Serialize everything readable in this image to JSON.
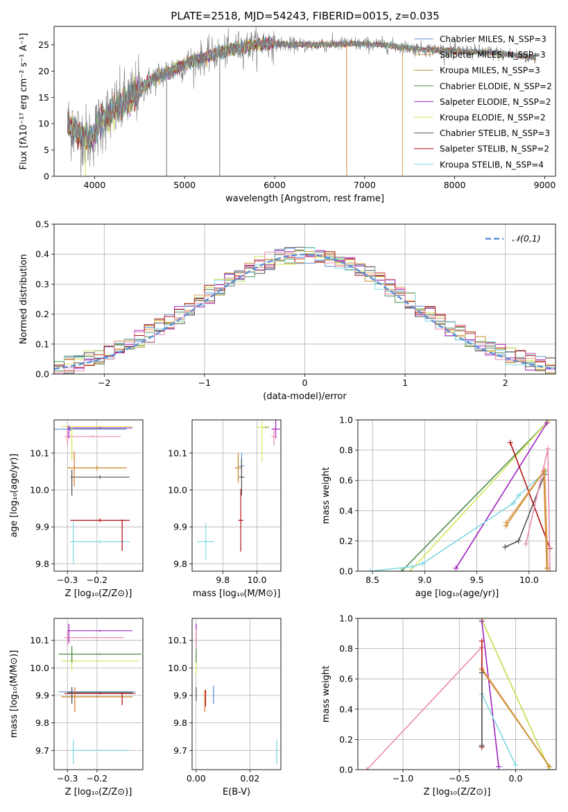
{
  "figure": {
    "title": "PLATE=2518, MJD=54243, FIBERID=0015, z=0.035"
  },
  "colors": {
    "Chabrier MILES": "#5b8ed6",
    "Salpeter MILES": "#e0a060",
    "Kroupa MILES": "#c98a2b",
    "Chabrier ELODIE": "#4d8a4d",
    "Salpeter ELODIE": "#a020c0",
    "Kroupa ELODIE": "#d6e65a",
    "Chabrier STELIB": "#555555",
    "Salpeter STELIB": "#b01010",
    "Kroupa STELIB": "#80d8e0",
    "pink": "#e98ab0",
    "orange": "#e07a30",
    "gauss": "#5b8ed6",
    "grid": "#b0b0b0"
  },
  "chart_data": [
    {
      "id": "spectrum",
      "type": "line",
      "xlabel": "wavelength [Angstrom, rest frame]",
      "ylabel": "Flux [fλ10⁻¹⁷ erg cm⁻² s⁻¹ A⁻¹]",
      "xlim": [
        3550,
        9120
      ],
      "ylim": [
        0,
        28.5
      ],
      "xticks": [
        4000,
        5000,
        6000,
        7000,
        8000,
        9000
      ],
      "yticks": [
        0,
        5,
        10,
        15,
        20,
        25
      ],
      "grid": false,
      "legend_position": "top-right",
      "legend": [
        "Chabrier MILES, N_SSP=3",
        "Salpeter MILES, N_SSP=3",
        "Kroupa MILES, N_SSP=3",
        "Chabrier ELODIE, N_SSP=2",
        "Salpeter ELODIE, N_SSP=2",
        "Kroupa ELODIE, N_SSP=2",
        "Chabrier STELIB, N_SSP=3",
        "Salpeter STELIB, N_SSP=2",
        "Kroupa STELIB, N_SSP=4"
      ],
      "continuum": [
        [
          3700,
          10
        ],
        [
          3800,
          8.5
        ],
        [
          3950,
          7
        ],
        [
          4100,
          11
        ],
        [
          4300,
          13.5
        ],
        [
          4500,
          16.5
        ],
        [
          4700,
          19
        ],
        [
          4900,
          20.5
        ],
        [
          5100,
          22
        ],
        [
          5300,
          23
        ],
        [
          5600,
          24.5
        ],
        [
          5900,
          25.3
        ],
        [
          6200,
          25
        ],
        [
          6500,
          25
        ],
        [
          6800,
          25.2
        ],
        [
          7200,
          25
        ],
        [
          7600,
          24.2
        ],
        [
          8000,
          23.8
        ],
        [
          8400,
          23.5
        ],
        [
          8800,
          22.8
        ],
        [
          8900,
          22.5
        ]
      ],
      "x_range": [
        3700,
        8900
      ]
    },
    {
      "id": "residuals",
      "type": "histogram",
      "xlabel": "(data-model)/error",
      "ylabel": "Normed distribution",
      "xlim": [
        -2.5,
        2.5
      ],
      "ylim": [
        0,
        0.5
      ],
      "xticks": [
        -2,
        -1,
        0,
        1,
        2
      ],
      "yticks": [
        0.0,
        0.1,
        0.2,
        0.3,
        0.4,
        0.5
      ],
      "grid": true,
      "legend_position": "top-right",
      "gauss_label": "𝒩(0,1)",
      "bin_width": 0.1
    },
    {
      "id": "age_vs_Z",
      "type": "scatter",
      "xlabel": "Z [log₁₀(Z/Z⊙)]",
      "ylabel": "age  [log₁₀(age/yr)]",
      "xlim": [
        -0.345,
        -0.045
      ],
      "ylim": [
        9.78,
        10.19
      ],
      "xticks": [
        -0.3,
        -0.2
      ],
      "yticks": [
        9.8,
        9.9,
        10.0,
        10.1
      ],
      "grid": true,
      "points": [
        {
          "model": "Chabrier MILES",
          "x": -0.29,
          "y": 10.165,
          "xerr": 0.19,
          "yerr": 0.005
        },
        {
          "model": "Salpeter MILES",
          "x": -0.2,
          "y": 10.06,
          "xerr": 0.1,
          "yerr": 0.006
        },
        {
          "model": "Kroupa MILES",
          "x": -0.2,
          "y": 10.06,
          "xerr": 0.1,
          "yerr": 0.006
        },
        {
          "model": "Chabrier ELODIE",
          "x": -0.2,
          "y": 10.168,
          "xerr": 0.1,
          "yerr": 0.003
        },
        {
          "model": "Salpeter ELODIE",
          "x": -0.19,
          "y": 10.168,
          "xerr": 0.11,
          "yerr": 0.003
        },
        {
          "model": "Kroupa ELODIE",
          "x": -0.2,
          "y": 10.172,
          "xerr": 0.12,
          "yerr": 0.003
        },
        {
          "model": "Chabrier STELIB",
          "x": -0.19,
          "y": 10.035,
          "xerr": 0.1,
          "yerr": 0.005
        },
        {
          "model": "Salpeter STELIB",
          "x": -0.19,
          "y": 9.918,
          "xerr": 0.1,
          "yerr": 0.005
        },
        {
          "model": "Kroupa STELIB",
          "x": -0.19,
          "y": 9.86,
          "xerr": 0.1,
          "yerr": 0.005
        },
        {
          "model": "pink",
          "x": -0.215,
          "y": 10.145,
          "xerr": 0.095,
          "yerr": 0.003
        }
      ],
      "verticals": [
        {
          "model": "Chabrier MILES",
          "x": -0.29,
          "y1": 10.16,
          "y2": 10.17
        },
        {
          "model": "Kroupa ELODIE",
          "x": -0.285,
          "y1": 10.08,
          "y2": 10.17
        },
        {
          "model": "pink",
          "x": -0.3,
          "y1": 10.12,
          "y2": 10.165
        },
        {
          "model": "Salpeter ELODIE",
          "x": -0.295,
          "y1": 10.14,
          "y2": 10.175
        },
        {
          "model": "orange",
          "x": -0.277,
          "y1": 10.01,
          "y2": 10.105
        },
        {
          "model": "Chabrier STELIB",
          "x": -0.285,
          "y1": 9.985,
          "y2": 10.055
        },
        {
          "model": "Salpeter STELIB",
          "x": -0.115,
          "y1": 9.835,
          "y2": 9.92
        },
        {
          "model": "Kroupa STELIB",
          "x": -0.28,
          "y1": 9.8,
          "y2": 9.915
        }
      ]
    },
    {
      "id": "age_vs_mass",
      "type": "scatter",
      "xlabel": "mass [log₁₀(M/M⊙)]",
      "ylabel": "",
      "xlim": [
        9.62,
        10.14
      ],
      "ylim": [
        9.78,
        10.19
      ],
      "xticks": [
        9.8,
        10.0
      ],
      "yticks": [
        9.8,
        9.9,
        10.0,
        10.1
      ],
      "grid": true,
      "points": [
        {
          "model": "Chabrier MILES",
          "x": 9.91,
          "y": 10.065,
          "xerr": 0.015,
          "yerr": 0.035
        },
        {
          "model": "Salpeter MILES",
          "x": 9.89,
          "y": 10.06,
          "xerr": 0.02,
          "yerr": 0.04
        },
        {
          "model": "Kroupa MILES",
          "x": 9.89,
          "y": 10.06,
          "xerr": 0.02,
          "yerr": 0.04
        },
        {
          "model": "Chabrier ELODIE",
          "x": 10.05,
          "y": 10.17,
          "xerr": 0.02,
          "yerr": 0.003
        },
        {
          "model": "Salpeter ELODIE",
          "x": 10.11,
          "y": 10.165,
          "xerr": 0.025,
          "yerr": 0.025
        },
        {
          "model": "Kroupa ELODIE",
          "x": 10.03,
          "y": 10.17,
          "xerr": 0.03,
          "yerr": 0.095
        },
        {
          "model": "Chabrier STELIB",
          "x": 9.91,
          "y": 10.035,
          "xerr": 0.015,
          "yerr": 0.05
        },
        {
          "model": "Salpeter STELIB",
          "x": 9.905,
          "y": 9.918,
          "xerr": 0.015,
          "yerr": 0.085
        },
        {
          "model": "Kroupa STELIB",
          "x": 9.7,
          "y": 9.86,
          "xerr": 0.05,
          "yerr": 0.05
        },
        {
          "model": "pink",
          "x": 10.1,
          "y": 10.145,
          "xerr": 0.015,
          "yerr": 0.025
        }
      ]
    },
    {
      "id": "weight_vs_age",
      "type": "line",
      "xlabel": "age  [log₁₀(age/yr)]",
      "ylabel": "mass weight",
      "xlim": [
        8.36,
        10.26
      ],
      "ylim": [
        0,
        1.0
      ],
      "xticks": [
        8.5,
        9.0,
        9.5,
        10.0
      ],
      "yticks": [
        0.0,
        0.2,
        0.4,
        0.6,
        0.8,
        1.0
      ],
      "grid": true,
      "series": [
        {
          "model": "Chabrier ELODIE",
          "x": [
            8.78,
            10.18
          ],
          "y": [
            0.0,
            0.99
          ]
        },
        {
          "model": "Kroupa ELODIE",
          "x": [
            8.86,
            10.18
          ],
          "y": [
            0.0,
            0.99
          ]
        },
        {
          "model": "Salpeter ELODIE",
          "x": [
            9.3,
            10.17
          ],
          "y": [
            0.02,
            0.98
          ]
        },
        {
          "model": "Kroupa STELIB",
          "x": [
            8.48,
            8.88,
            8.98,
            9.85,
            9.9,
            10.16
          ],
          "y": [
            0.0,
            0.03,
            0.05,
            0.45,
            0.5,
            0.66
          ]
        },
        {
          "model": "Chabrier STELIB",
          "x": [
            9.77,
            9.9,
            10.15
          ],
          "y": [
            0.16,
            0.2,
            0.64
          ]
        },
        {
          "model": "Salpeter STELIB",
          "x": [
            9.82,
            10.2
          ],
          "y": [
            0.85,
            0.15
          ]
        },
        {
          "model": "Salpeter MILES",
          "x": [
            9.78,
            10.15,
            10.18
          ],
          "y": [
            0.32,
            0.67,
            0.02
          ]
        },
        {
          "model": "Kroupa MILES",
          "x": [
            9.78,
            10.14,
            10.17
          ],
          "y": [
            0.3,
            0.66,
            0.02
          ]
        },
        {
          "model": "pink",
          "x": [
            9.97,
            10.18,
            10.2
          ],
          "y": [
            0.18,
            0.81,
            0.0
          ]
        }
      ]
    },
    {
      "id": "mass_vs_Z",
      "type": "scatter",
      "xlabel": "Z [log₁₀(Z/Z⊙)]",
      "ylabel": "mass [log₁₀(M/M⊙)]",
      "xlim": [
        -0.345,
        -0.045
      ],
      "ylim": [
        9.63,
        10.18
      ],
      "xticks": [
        -0.3,
        -0.2
      ],
      "yticks": [
        9.7,
        9.8,
        9.9,
        10.0,
        10.1
      ],
      "grid": true,
      "points": [
        {
          "model": "Chabrier MILES",
          "x": -0.2,
          "y": 9.913,
          "xerr": 0.13,
          "yerr": 0.003
        },
        {
          "model": "Salpeter MILES",
          "x": -0.2,
          "y": 9.895,
          "xerr": 0.12,
          "yerr": 0.003
        },
        {
          "model": "Kroupa MILES",
          "x": -0.2,
          "y": 9.895,
          "xerr": 0.12,
          "yerr": 0.003
        },
        {
          "model": "Chabrier ELODIE",
          "x": -0.19,
          "y": 10.05,
          "xerr": 0.14,
          "yerr": 0.003
        },
        {
          "model": "Salpeter ELODIE",
          "x": -0.19,
          "y": 10.135,
          "xerr": 0.11,
          "yerr": 0.003
        },
        {
          "model": "Kroupa ELODIE",
          "x": -0.19,
          "y": 10.025,
          "xerr": 0.13,
          "yerr": 0.003
        },
        {
          "model": "Chabrier STELIB",
          "x": -0.19,
          "y": 9.91,
          "xerr": 0.11,
          "yerr": 0.003
        },
        {
          "model": "Salpeter STELIB",
          "x": -0.19,
          "y": 9.907,
          "xerr": 0.12,
          "yerr": 0.003
        },
        {
          "model": "Kroupa STELIB",
          "x": -0.19,
          "y": 9.7,
          "xerr": 0.1,
          "yerr": 0.003
        },
        {
          "model": "pink",
          "x": -0.21,
          "y": 10.11,
          "xerr": 0.1,
          "yerr": 0.003
        }
      ],
      "verticals": [
        {
          "model": "Salpeter ELODIE",
          "x": -0.295,
          "y1": 10.09,
          "y2": 10.16
        },
        {
          "model": "pink",
          "x": -0.3,
          "y1": 10.08,
          "y2": 10.13
        },
        {
          "model": "Kroupa ELODIE",
          "x": -0.285,
          "y1": 9.99,
          "y2": 10.06
        },
        {
          "model": "Chabrier ELODIE",
          "x": -0.285,
          "y1": 10.02,
          "y2": 10.08
        },
        {
          "model": "Chabrier MILES",
          "x": -0.285,
          "y1": 9.87,
          "y2": 9.93
        },
        {
          "model": "orange",
          "x": -0.275,
          "y1": 9.84,
          "y2": 9.93
        },
        {
          "model": "Chabrier STELIB",
          "x": -0.285,
          "y1": 9.87,
          "y2": 9.93
        },
        {
          "model": "Salpeter STELIB",
          "x": -0.115,
          "y1": 9.865,
          "y2": 9.91
        },
        {
          "model": "Kroupa STELIB",
          "x": -0.28,
          "y1": 9.65,
          "y2": 9.74
        }
      ]
    },
    {
      "id": "mass_vs_EBV",
      "type": "scatter",
      "xlabel": "E(B-V)",
      "ylabel": "",
      "xlim": [
        -0.0015,
        0.0315
      ],
      "ylim": [
        9.63,
        10.18
      ],
      "xticks": [
        0.0,
        0.02
      ],
      "yticks": [
        9.7,
        9.8,
        9.9,
        10.0,
        10.1
      ],
      "grid": true,
      "verticals": [
        {
          "model": "Salpeter ELODIE",
          "x": 0.0,
          "y1": 10.08,
          "y2": 10.16
        },
        {
          "model": "pink",
          "x": 0.0,
          "y1": 10.07,
          "y2": 10.14
        },
        {
          "model": "Kroupa ELODIE",
          "x": 0.0,
          "y1": 9.98,
          "y2": 10.04
        },
        {
          "model": "Chabrier ELODIE",
          "x": 0.0,
          "y1": 10.02,
          "y2": 10.07
        },
        {
          "model": "Chabrier STELIB",
          "x": 0.0,
          "y1": 9.88,
          "y2": 9.93
        },
        {
          "model": "Salpeter STELIB",
          "x": 0.0035,
          "y1": 9.86,
          "y2": 9.92
        },
        {
          "model": "orange",
          "x": 0.0032,
          "y1": 9.84,
          "y2": 9.92
        },
        {
          "model": "Chabrier MILES",
          "x": 0.0065,
          "y1": 9.87,
          "y2": 9.935
        },
        {
          "model": "Kroupa STELIB",
          "x": 0.03,
          "y1": 9.65,
          "y2": 9.74
        }
      ]
    },
    {
      "id": "weight_vs_Z",
      "type": "line",
      "xlabel": "Z [log₁₀(Z/Z⊙)]",
      "ylabel": "mass weight",
      "xlim": [
        -1.4,
        0.36
      ],
      "ylim": [
        0,
        1.0
      ],
      "xticks": [
        -1.0,
        -0.5,
        0.0
      ],
      "yticks": [
        0.0,
        0.2,
        0.4,
        0.6,
        0.8,
        1.0
      ],
      "grid": true,
      "series": [
        {
          "model": "pink",
          "x": [
            -1.32,
            -0.3,
            -0.3
          ],
          "y": [
            0.0,
            0.81,
            0.15
          ]
        },
        {
          "model": "Chabrier ELODIE",
          "x": [
            -0.3,
            0.3
          ],
          "y": [
            0.99,
            0.0
          ]
        },
        {
          "model": "Kroupa ELODIE",
          "x": [
            -0.3,
            0.3
          ],
          "y": [
            0.99,
            0.0
          ]
        },
        {
          "model": "Salpeter ELODIE",
          "x": [
            -0.3,
            -0.15
          ],
          "y": [
            0.98,
            0.02
          ]
        },
        {
          "model": "Salpeter MILES",
          "x": [
            -0.3,
            0.3
          ],
          "y": [
            0.67,
            0.02
          ]
        },
        {
          "model": "Kroupa MILES",
          "x": [
            -0.3,
            0.3
          ],
          "y": [
            0.66,
            0.02
          ]
        },
        {
          "model": "Kroupa STELIB",
          "x": [
            -0.3,
            0.0
          ],
          "y": [
            0.5,
            0.03
          ]
        },
        {
          "model": "Salpeter STELIB",
          "x": [
            -0.3,
            -0.3
          ],
          "y": [
            0.85,
            0.15
          ]
        },
        {
          "model": "Chabrier STELIB",
          "x": [
            -0.3,
            -0.3
          ],
          "y": [
            0.64,
            0.16
          ]
        }
      ]
    }
  ]
}
